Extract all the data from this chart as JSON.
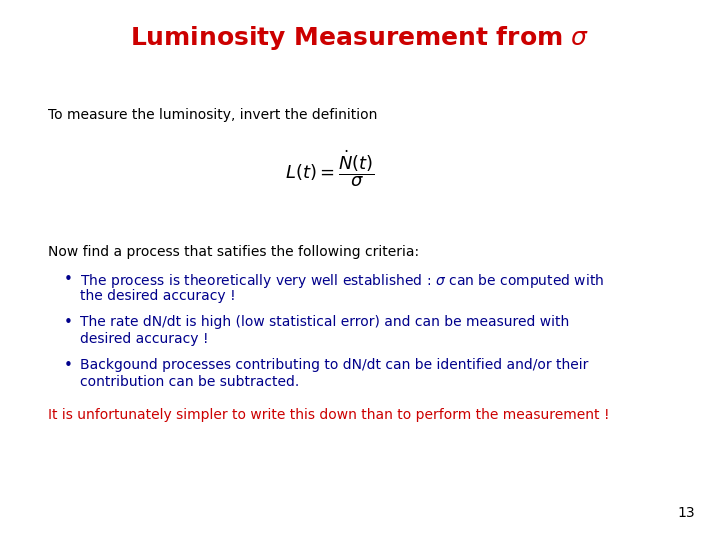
{
  "title": "Luminosity Measurement from $\\sigma$",
  "title_color": "#cc0000",
  "bg_color": "#ffffff",
  "intro_text": "To measure the luminosity, invert the definition",
  "intro_color": "#000000",
  "formula": "$L(t) = \\dfrac{\\dot{N}(t)}{\\sigma}$",
  "formula_color": "#000000",
  "now_text": "Now find a process that satifies the following criteria:",
  "now_color": "#000000",
  "bullet1_line1": "The process is theoretically very well established : $\\sigma$ can be computed with",
  "bullet1_line2": "the desired accuracy !",
  "bullet2_line1": "The rate dN/dt is high (low statistical error) and can be measured with",
  "bullet2_line2": "desired accuracy !",
  "bullet3_line1": "Backgound processes contributing to dN/dt can be identified and/or their",
  "bullet3_line2": "contribution can be subtracted.",
  "bullet_color": "#00008b",
  "closing_text": "It is unfortunately simpler to write this down than to perform the measurement !",
  "closing_color": "#cc0000",
  "page_number": "13",
  "page_color": "#000000",
  "title_fontsize": 18,
  "body_fontsize": 10,
  "formula_fontsize": 13,
  "bullet_fontsize": 10,
  "closing_fontsize": 10
}
